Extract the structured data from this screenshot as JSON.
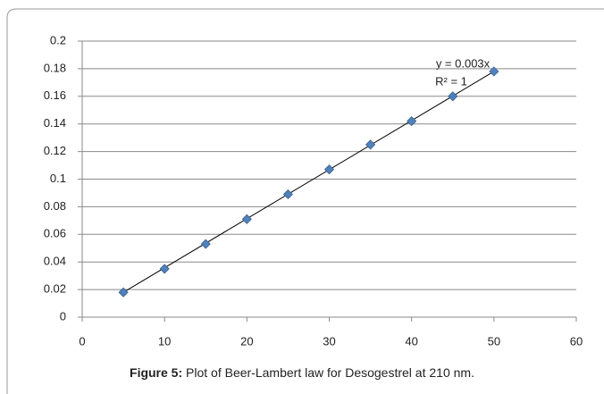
{
  "chart_data": {
    "type": "scatter",
    "x": [
      5,
      10,
      15,
      20,
      25,
      30,
      35,
      40,
      45,
      50
    ],
    "values": [
      0.018,
      0.035,
      0.053,
      0.071,
      0.089,
      0.107,
      0.125,
      0.142,
      0.16,
      0.178
    ],
    "color": "#4f81bd",
    "trendline": true,
    "xlim": [
      0,
      60
    ],
    "xticks": [
      0,
      10,
      20,
      30,
      40,
      50,
      60
    ],
    "ylim": [
      0,
      0.2
    ],
    "yticks": [
      0,
      0.02,
      0.04,
      0.06,
      0.08,
      0.1,
      0.12,
      0.14,
      0.16,
      0.18,
      0.2
    ],
    "grid": true,
    "annotations": [
      "y = 0.003x",
      "R² = 1"
    ],
    "caption_label": "Figure 5:",
    "caption": "Plot of Beer-Lambert law for Desogestrel at 210 nm."
  }
}
